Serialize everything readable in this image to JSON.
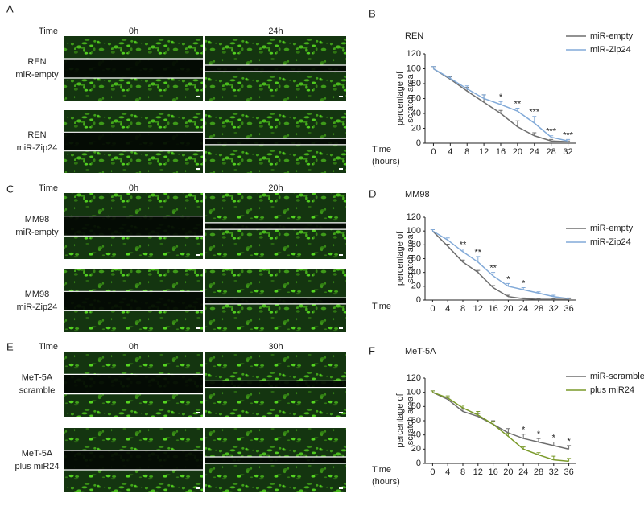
{
  "panels": [
    {
      "letter": "A",
      "time_label": "Time",
      "columns": [
        "0h",
        "24h"
      ],
      "rows": [
        [
          "REN",
          "miR-empty"
        ],
        [
          "REN",
          "miR-Zip24"
        ]
      ]
    },
    {
      "letter": "C",
      "time_label": "Time",
      "columns": [
        "0h",
        "20h"
      ],
      "rows": [
        [
          "MM98",
          "miR-empty"
        ],
        [
          "MM98",
          "miR-Zip24"
        ]
      ]
    },
    {
      "letter": "E",
      "time_label": "Time",
      "columns": [
        "0h",
        "30h"
      ],
      "rows": [
        [
          "MeT-5A",
          "scramble"
        ],
        [
          "MeT-5A",
          "plus miR24"
        ]
      ]
    }
  ],
  "chart_data": [
    {
      "letter": "B",
      "type": "line",
      "title": "REN",
      "ylabel": [
        "percentage of",
        "scratch area"
      ],
      "xlabel": [
        "Time",
        "(hours)"
      ],
      "x": [
        0,
        4,
        8,
        12,
        16,
        20,
        24,
        28,
        32
      ],
      "xlim": [
        -2,
        34
      ],
      "xticks": [
        0,
        4,
        8,
        12,
        16,
        20,
        24,
        28,
        32
      ],
      "ylim": [
        0,
        120
      ],
      "yticks": [
        0,
        20,
        40,
        60,
        80,
        100,
        120
      ],
      "series": [
        {
          "name": "miR-empty",
          "color": "#6e6e6e",
          "values": [
            100,
            86,
            70,
            55,
            40,
            22,
            10,
            3,
            2
          ],
          "errors": [
            3,
            3,
            5,
            10,
            4,
            8,
            4,
            2,
            1
          ]
        },
        {
          "name": "miR-Zip24",
          "color": "#82aad8",
          "values": [
            100,
            87,
            73,
            60,
            52,
            43,
            27,
            8,
            3
          ],
          "errors": [
            3,
            3,
            4,
            5,
            4,
            4,
            9,
            2,
            2
          ]
        }
      ],
      "annotations": [
        {
          "x": 16,
          "text": "*"
        },
        {
          "x": 20,
          "text": "**"
        },
        {
          "x": 24,
          "text": "***"
        },
        {
          "x": 28,
          "text": "***"
        },
        {
          "x": 32,
          "text": "***"
        }
      ]
    },
    {
      "letter": "D",
      "type": "line",
      "title": "MM98",
      "ylabel": [
        "percentage of",
        "scratch area"
      ],
      "xlabel": [
        "Time"
      ],
      "x": [
        0,
        4,
        8,
        12,
        16,
        20,
        24,
        28,
        32,
        36
      ],
      "xlim": [
        -2,
        38
      ],
      "xticks": [
        0,
        4,
        8,
        12,
        16,
        20,
        24,
        28,
        32,
        36
      ],
      "ylim": [
        0,
        120
      ],
      "yticks": [
        0,
        20,
        40,
        60,
        80,
        100,
        120
      ],
      "series": [
        {
          "name": "miR-empty",
          "color": "#6e6e6e",
          "values": [
            100,
            78,
            55,
            40,
            18,
            5,
            2,
            1,
            1,
            1
          ],
          "errors": [
            2,
            3,
            3,
            3,
            3,
            2,
            1,
            1,
            1,
            1
          ]
        },
        {
          "name": "miR-Zip24",
          "color": "#82aad8",
          "values": [
            100,
            87,
            70,
            55,
            35,
            20,
            15,
            10,
            5,
            2
          ],
          "errors": [
            2,
            3,
            4,
            8,
            5,
            4,
            3,
            2,
            2,
            1
          ]
        }
      ],
      "annotations": [
        {
          "x": 8,
          "text": "**"
        },
        {
          "x": 12,
          "text": "**"
        },
        {
          "x": 16,
          "text": "**"
        },
        {
          "x": 20,
          "text": "*"
        },
        {
          "x": 24,
          "text": "*"
        }
      ]
    },
    {
      "letter": "F",
      "type": "line",
      "title": "MeT-5A",
      "ylabel": [
        "percentage of",
        "scratch area"
      ],
      "xlabel": [
        "Time",
        "(hours)"
      ],
      "x": [
        0,
        4,
        8,
        12,
        16,
        20,
        24,
        28,
        32,
        36
      ],
      "xlim": [
        -2,
        38
      ],
      "xticks": [
        0,
        4,
        8,
        12,
        16,
        20,
        24,
        28,
        32,
        36
      ],
      "ylim": [
        0,
        120
      ],
      "yticks": [
        0,
        20,
        40,
        60,
        80,
        100,
        120
      ],
      "series": [
        {
          "name": "miR-scramble",
          "color": "#6e6e6e",
          "values": [
            100,
            90,
            73,
            66,
            55,
            43,
            35,
            30,
            25,
            20
          ],
          "errors": [
            2,
            3,
            4,
            4,
            5,
            6,
            6,
            5,
            5,
            5
          ]
        },
        {
          "name": "plus miR24",
          "color": "#7a9a2a",
          "values": [
            100,
            92,
            78,
            68,
            55,
            38,
            20,
            12,
            5,
            3
          ],
          "errors": [
            2,
            3,
            4,
            5,
            4,
            4,
            3,
            3,
            5,
            4
          ]
        }
      ],
      "annotations": [
        {
          "x": 24,
          "text": "*"
        },
        {
          "x": 28,
          "text": "*"
        },
        {
          "x": 32,
          "text": "*"
        },
        {
          "x": 36,
          "text": "*"
        }
      ]
    }
  ]
}
